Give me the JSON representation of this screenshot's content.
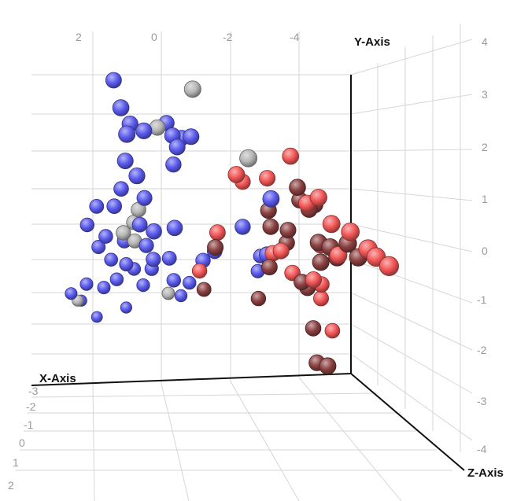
{
  "chart_data": {
    "type": "scatter",
    "title": "",
    "axes": {
      "x": {
        "label": "X-Axis",
        "ticks": [
          "2",
          "0",
          "-2",
          "-4"
        ]
      },
      "y": {
        "label": "Y-Axis",
        "ticks": [
          "-4",
          "-3",
          "-2",
          "-1",
          "0",
          "1",
          "2",
          "3",
          "4"
        ]
      },
      "z": {
        "label": "Z-Axis",
        "ticks": [
          "-3",
          "-2",
          "-1",
          "0",
          "1",
          "2"
        ]
      }
    },
    "grid": true,
    "series": [
      {
        "color": "#5a5aee",
        "points": [
          [
            2.4,
            4.5,
            0.0
          ],
          [
            2.3,
            3.8,
            0.3
          ],
          [
            2.0,
            3.3,
            0.2
          ],
          [
            2.2,
            3.1,
            0.5
          ],
          [
            1.6,
            3.1,
            0.2
          ],
          [
            0.8,
            3.2,
            -0.2
          ],
          [
            0.7,
            2.9,
            0.0
          ],
          [
            0.6,
            2.6,
            0.1
          ],
          [
            0.4,
            2.8,
            -0.1
          ],
          [
            0.2,
            2.9,
            0.1
          ],
          [
            2.1,
            2.2,
            0.1
          ],
          [
            1.8,
            1.8,
            0.2
          ],
          [
            0.6,
            2.0,
            -0.2
          ],
          [
            2.0,
            1.2,
            -0.5
          ],
          [
            1.4,
            1.0,
            -0.3
          ],
          [
            2.6,
            0.6,
            -0.8
          ],
          [
            2.2,
            0.7,
            -0.5
          ],
          [
            1.5,
            0.2,
            -0.4
          ],
          [
            1.2,
            0.1,
            -0.1
          ],
          [
            0.6,
            0.2,
            -0.1
          ],
          [
            2.8,
            0.0,
            -1.0
          ],
          [
            2.3,
            -0.3,
            -0.9
          ],
          [
            2.4,
            -0.7,
            -1.2
          ],
          [
            1.8,
            -0.4,
            -0.8
          ],
          [
            1.2,
            -0.5,
            -0.7
          ],
          [
            1.0,
            -0.9,
            -0.7
          ],
          [
            0.5,
            -0.9,
            -0.8
          ],
          [
            -0.4,
            -0.9,
            -0.6
          ],
          [
            -0.7,
            -0.6,
            -0.5
          ],
          [
            2.0,
            -1.1,
            -1.3
          ],
          [
            1.6,
            -1.2,
            -1.2
          ],
          [
            1.3,
            -1.4,
            -1.4
          ],
          [
            0.9,
            -1.3,
            -1.1
          ],
          [
            0.3,
            -1.6,
            -1.0
          ],
          [
            -0.3,
            -1.8,
            -1.4
          ],
          [
            2.6,
            -1.9,
            -1.6
          ],
          [
            2.1,
            -2.0,
            -1.6
          ],
          [
            1.8,
            -1.7,
            -1.4
          ],
          [
            1.0,
            -1.9,
            -1.5
          ],
          [
            2.9,
            -2.3,
            -2.0
          ],
          [
            2.5,
            -2.6,
            -2.3
          ],
          [
            1.2,
            -2.8,
            -2.3
          ],
          [
            -0.2,
            -2.3,
            -1.8
          ],
          [
            -2.0,
            1.2,
            0.4
          ],
          [
            -1.4,
            0.2,
            -0.2
          ],
          [
            -2.1,
            -0.6,
            -0.2
          ],
          [
            -2.2,
            -0.9,
            -1.0
          ],
          [
            -2.2,
            -1.4,
            -1.2
          ],
          [
            1.9,
            -3.2,
            -2.7
          ]
        ]
      },
      {
        "color": "#b5b5b5",
        "points": [
          [
            0.3,
            4.4,
            0.5
          ],
          [
            1.1,
            3.1,
            -0.1
          ],
          [
            -1.2,
            2.5,
            0.8
          ],
          [
            1.5,
            0.6,
            -0.5
          ],
          [
            1.6,
            0.2,
            -0.6
          ],
          [
            1.9,
            -0.1,
            -0.6
          ],
          [
            1.5,
            -0.4,
            -0.8
          ],
          [
            0.2,
            -2.2,
            -1.7
          ],
          [
            2.6,
            -2.6,
            -2.3
          ]
        ]
      },
      {
        "color": "#f25555",
        "points": [
          [
            -2.6,
            2.4,
            0.3
          ],
          [
            -1.0,
            1.9,
            0.4
          ],
          [
            -1.4,
            1.5,
            -0.2
          ],
          [
            -2.0,
            1.7,
            0.1
          ],
          [
            -3.0,
            1.1,
            0.5
          ],
          [
            -3.3,
            1.3,
            0.6
          ],
          [
            -3.6,
            0.6,
            0.8
          ],
          [
            -4.0,
            0.5,
            1.2
          ],
          [
            -4.4,
            0.1,
            1.5
          ],
          [
            -4.6,
            -0.1,
            1.6
          ],
          [
            -4.9,
            -0.3,
            1.8
          ],
          [
            -3.8,
            -0.3,
            0.8
          ],
          [
            -3.4,
            -0.1,
            0.5
          ],
          [
            -2.4,
            -0.4,
            0.1
          ],
          [
            -2.2,
            -0.5,
            0.0
          ],
          [
            -0.6,
            0.1,
            0.0
          ],
          [
            -0.3,
            -1.2,
            -0.6
          ],
          [
            -2.8,
            -1.1,
            -0.1
          ],
          [
            -3.3,
            -1.2,
            0.2
          ],
          [
            -3.6,
            -1.4,
            0.0
          ],
          [
            -3.7,
            -1.9,
            -0.3
          ],
          [
            -4.1,
            -2.9,
            -0.5
          ]
        ]
      },
      {
        "color": "#8b4040",
        "points": [
          [
            -2.8,
            1.5,
            0.3
          ],
          [
            -2.9,
            1.1,
            0.2
          ],
          [
            -3.3,
            1.0,
            0.3
          ],
          [
            -2.0,
            0.8,
            0.2
          ],
          [
            -2.1,
            0.3,
            0.1
          ],
          [
            -2.6,
            0.2,
            0.1
          ],
          [
            -2.6,
            -0.2,
            0.0
          ],
          [
            -3.3,
            0.0,
            0.6
          ],
          [
            -3.6,
            -0.1,
            0.7
          ],
          [
            -3.8,
            -0.4,
            0.7
          ],
          [
            -4.0,
            0.1,
            1.0
          ],
          [
            -4.3,
            -0.3,
            1.0
          ],
          [
            -3.1,
            0.9,
            0.4
          ],
          [
            -3.4,
            -0.6,
            0.5
          ],
          [
            -2.1,
            -0.9,
            0.0
          ],
          [
            -0.5,
            -0.3,
            0.1
          ],
          [
            -3.0,
            -1.3,
            0.1
          ],
          [
            -3.2,
            -1.5,
            0.0
          ],
          [
            -0.5,
            -1.8,
            -0.8
          ],
          [
            -2.0,
            -2.0,
            -0.6
          ],
          [
            -3.4,
            -2.7,
            -0.1
          ],
          [
            -3.4,
            -3.6,
            0.2
          ],
          [
            -3.6,
            -3.6,
            0.5
          ]
        ]
      }
    ]
  }
}
